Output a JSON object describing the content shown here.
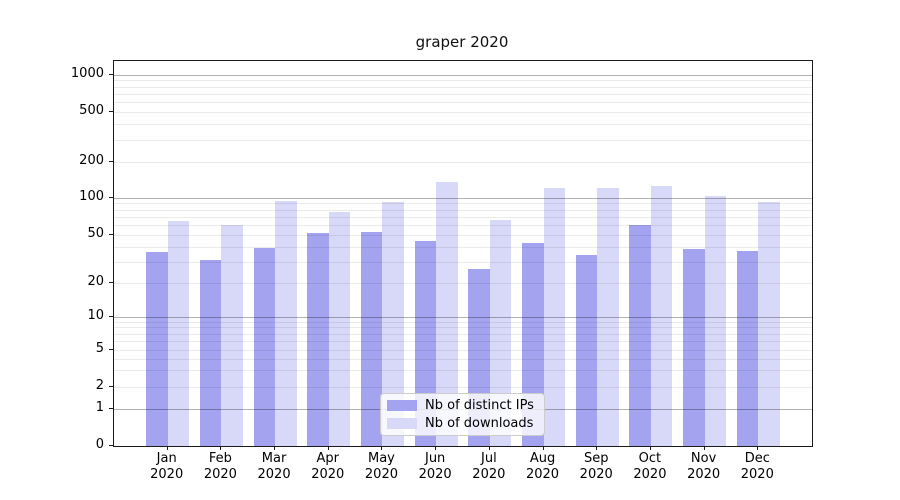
{
  "chart_data": {
    "type": "bar",
    "title": "graper 2020",
    "x_categories": [
      "Jan",
      "Feb",
      "Mar",
      "Apr",
      "May",
      "Jun",
      "Jul",
      "Aug",
      "Sep",
      "Oct",
      "Nov",
      "Dec"
    ],
    "x_year": "2020",
    "series": [
      {
        "name": "Nb of distinct IPs",
        "color": "#a3a3f0",
        "values": [
          36,
          31,
          39,
          52,
          53,
          45,
          26,
          43,
          34,
          60,
          38,
          37
        ]
      },
      {
        "name": "Nb of downloads",
        "color": "#d8d8f8",
        "values": [
          65,
          60,
          93,
          76,
          92,
          134,
          66,
          120,
          120,
          126,
          102,
          92
        ]
      }
    ],
    "yscale": "symlog",
    "ylim": [
      0,
      1000
    ],
    "y_ticks": [
      0,
      1,
      2,
      5,
      10,
      20,
      50,
      100,
      200,
      500,
      1000
    ],
    "grid": "horizontal major (decades) + minor log lines, drawn over bars",
    "legend_position": "lower center inside plot",
    "colors": {
      "axis": "#1a1a1a",
      "major_grid": "#b3b3b3",
      "minor_grid": "#ebebeb"
    }
  }
}
